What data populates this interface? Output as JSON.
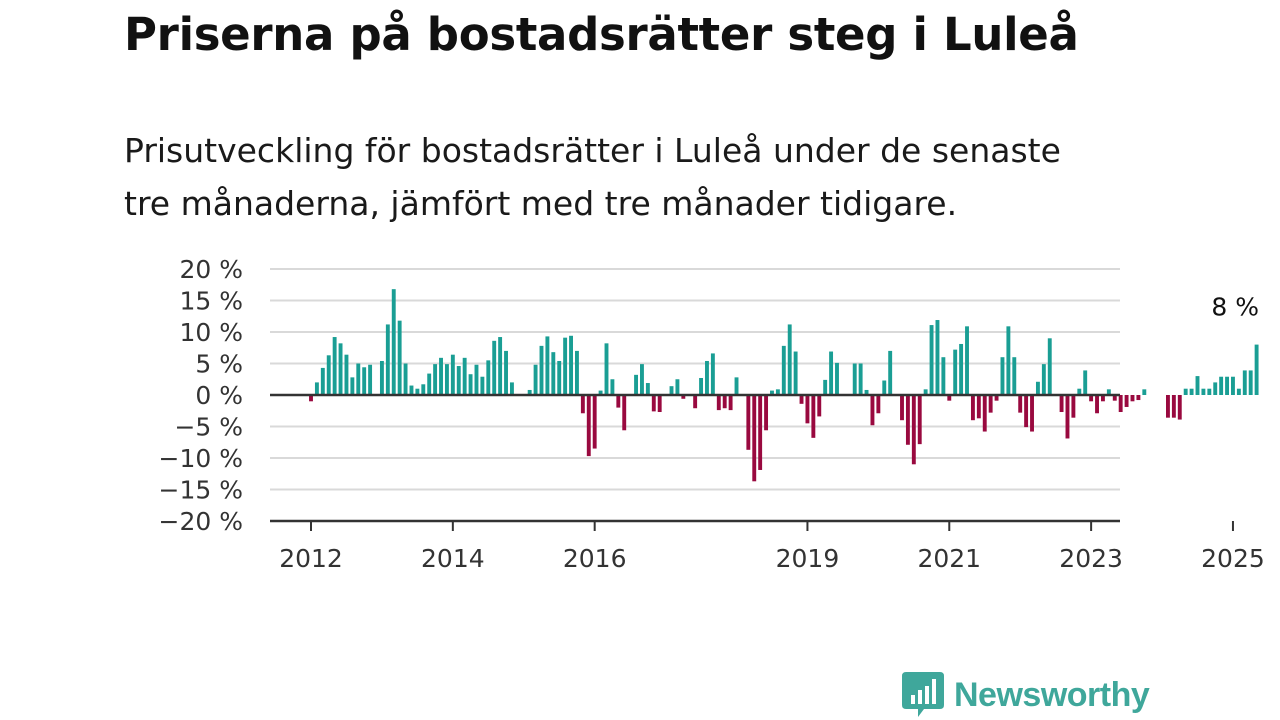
{
  "title": "Priserna på bostadsrätter steg i Luleå",
  "subtitle_lines": [
    "Prisutveckling för bostadsrätter i Luleå under de senaste",
    "tre månaderna, jämfört med tre månader tidigare."
  ],
  "logo": {
    "name": "Newsworthy",
    "icon": "newsworthy-bar-chart-icon"
  },
  "colors": {
    "positive": "#1a9e94",
    "negative": "#99093f",
    "logo": "#3fa79b",
    "grid": "#d9d9d9",
    "axis": "#333333"
  },
  "chart_data": {
    "type": "bar",
    "ylabel": "",
    "xlabel": "",
    "ylim": [
      -20,
      20
    ],
    "yticks": [
      20,
      15,
      10,
      5,
      0,
      -5,
      -10,
      -15,
      -20
    ],
    "ytick_labels": [
      "20 %",
      "15 %",
      "10 %",
      "5 %",
      "0 %",
      "−5 %",
      "−10 %",
      "−15 %",
      "−20 %"
    ],
    "xtick_labels": [
      "2012",
      "2014",
      "2016",
      "2019",
      "2021",
      "2023",
      "2025"
    ],
    "xtick_months": [
      0,
      24,
      48,
      84,
      108,
      132,
      156
    ],
    "grid": true,
    "start_label": "2012",
    "annotation": {
      "text": "8 %",
      "value": 8,
      "month": 156
    },
    "values": [
      -1,
      2,
      4.3,
      6.3,
      9.2,
      8.2,
      6.4,
      2.8,
      5,
      4.4,
      4.8,
      null,
      5.4,
      11.2,
      16.8,
      11.8,
      5,
      1.5,
      1,
      1.7,
      3.4,
      4.9,
      5.9,
      4.9,
      6.4,
      4.6,
      5.9,
      3.3,
      4.8,
      2.9,
      5.5,
      8.6,
      9.2,
      7,
      2,
      null,
      null,
      0.8,
      4.8,
      7.8,
      9.3,
      6.8,
      5.4,
      9.1,
      9.4,
      7,
      -2.9,
      -9.7,
      -8.5,
      0.7,
      8.2,
      2.5,
      -2,
      -5.6,
      null,
      3.2,
      4.9,
      1.9,
      -2.6,
      -2.7,
      null,
      1.4,
      2.5,
      -0.6,
      null,
      -2.1,
      2.7,
      5.4,
      6.6,
      -2.4,
      -2.1,
      -2.4,
      2.8,
      null,
      -8.7,
      -13.7,
      -11.9,
      -5.6,
      0.7,
      0.9,
      7.8,
      11.2,
      6.9,
      -1.4,
      -4.5,
      -6.8,
      -3.4,
      2.4,
      6.9,
      5.1,
      null,
      null,
      5,
      5,
      0.8,
      -4.8,
      -2.9,
      2.3,
      7,
      null,
      -4,
      -7.9,
      -11,
      -7.8,
      0.9,
      11.1,
      11.9,
      6,
      -0.9,
      7.2,
      8.1,
      10.9,
      -4,
      -3.7,
      -5.8,
      -2.8,
      -0.9,
      6,
      10.9,
      6,
      -2.8,
      -5.1,
      -5.8,
      2.1,
      4.9,
      9,
      null,
      -2.7,
      -6.9,
      -3.6,
      1,
      3.9,
      -1,
      -2.9,
      -1,
      0.9,
      -0.9,
      -2.7,
      -1.9,
      -1,
      -0.8,
      0.9,
      null,
      null,
      null,
      -3.6,
      -3.6,
      -3.9,
      1,
      1,
      3,
      1,
      1,
      2,
      2.9,
      2.9,
      2.9,
      1,
      3.9,
      3.9,
      8
    ]
  }
}
